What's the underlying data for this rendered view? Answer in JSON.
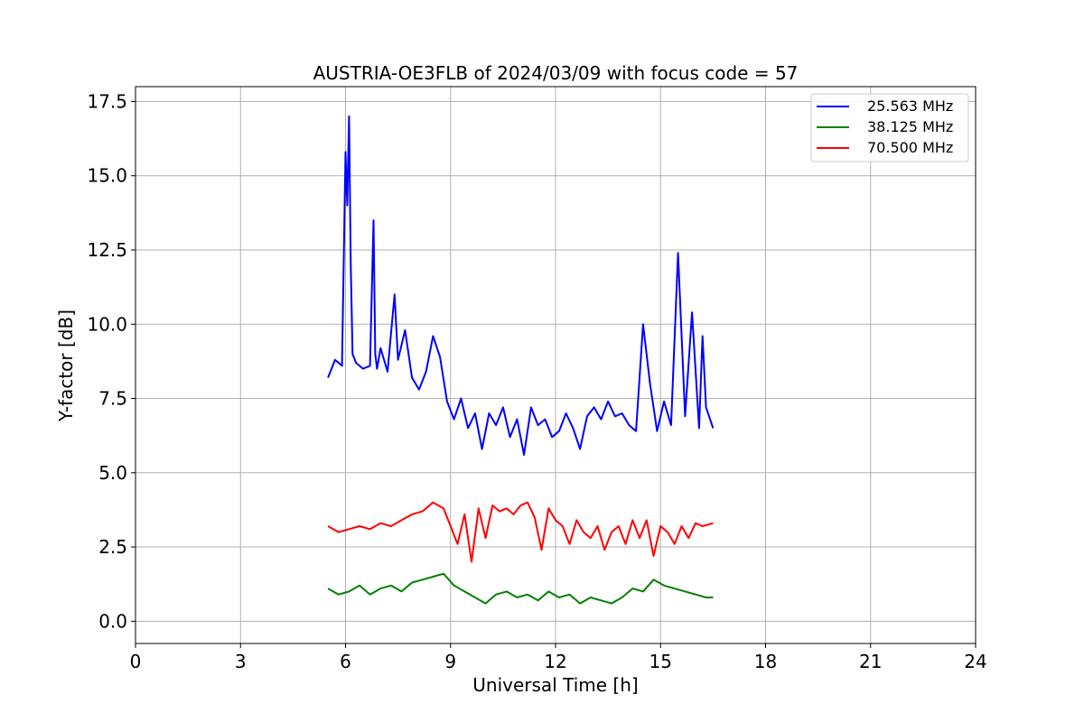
{
  "chart_data": {
    "type": "line",
    "title": "AUSTRIA-OE3FLB of 2024/03/09 with focus code = 57",
    "xlabel": "Universal Time [h]",
    "ylabel": "Y-factor [dB]",
    "xlim": [
      0,
      24
    ],
    "ylim": [
      -0.75,
      18.0
    ],
    "xticks": [
      "0",
      "3",
      "6",
      "9",
      "12",
      "15",
      "18",
      "21",
      "24"
    ],
    "yticks": [
      "0.0",
      "2.5",
      "5.0",
      "7.5",
      "10.0",
      "12.5",
      "15.0",
      "17.5"
    ],
    "grid": true,
    "legend_position": "top-right",
    "series": [
      {
        "name": "25.563 MHz",
        "color": "#0000ff",
        "x": [
          5.5,
          5.7,
          5.9,
          6.0,
          6.05,
          6.1,
          6.15,
          6.2,
          6.3,
          6.5,
          6.7,
          6.8,
          6.85,
          6.9,
          7.0,
          7.2,
          7.4,
          7.5,
          7.7,
          7.9,
          8.1,
          8.3,
          8.5,
          8.7,
          8.9,
          9.1,
          9.3,
          9.5,
          9.7,
          9.9,
          10.1,
          10.3,
          10.5,
          10.7,
          10.9,
          11.1,
          11.3,
          11.5,
          11.7,
          11.9,
          12.1,
          12.3,
          12.5,
          12.7,
          12.9,
          13.1,
          13.3,
          13.5,
          13.7,
          13.9,
          14.1,
          14.3,
          14.5,
          14.7,
          14.9,
          15.1,
          15.3,
          15.5,
          15.7,
          15.9,
          16.1,
          16.2,
          16.3,
          16.5
        ],
        "y": [
          8.2,
          8.8,
          8.6,
          15.8,
          14.0,
          17.0,
          12.0,
          9.0,
          8.7,
          8.5,
          8.6,
          13.5,
          9.0,
          8.5,
          9.2,
          8.4,
          11.0,
          8.8,
          9.8,
          8.2,
          7.8,
          8.4,
          9.6,
          8.9,
          7.4,
          6.8,
          7.5,
          6.5,
          7.0,
          5.8,
          7.0,
          6.6,
          7.2,
          6.2,
          6.8,
          5.6,
          7.2,
          6.6,
          6.8,
          6.2,
          6.4,
          7.0,
          6.5,
          5.8,
          6.9,
          7.2,
          6.8,
          7.4,
          6.9,
          7.0,
          6.6,
          6.4,
          10.0,
          8.0,
          6.4,
          7.4,
          6.6,
          12.4,
          6.9,
          10.4,
          6.5,
          9.6,
          7.2,
          6.5
        ]
      },
      {
        "name": "38.125 MHz",
        "color": "#008000",
        "x": [
          5.5,
          5.8,
          6.1,
          6.4,
          6.7,
          7.0,
          7.3,
          7.6,
          7.9,
          8.2,
          8.5,
          8.8,
          9.1,
          9.4,
          9.7,
          10.0,
          10.3,
          10.6,
          10.9,
          11.2,
          11.5,
          11.8,
          12.1,
          12.4,
          12.7,
          13.0,
          13.3,
          13.6,
          13.9,
          14.2,
          14.5,
          14.8,
          15.1,
          15.4,
          15.7,
          16.0,
          16.3,
          16.5
        ],
        "y": [
          1.1,
          0.9,
          1.0,
          1.2,
          0.9,
          1.1,
          1.2,
          1.0,
          1.3,
          1.4,
          1.5,
          1.6,
          1.2,
          1.0,
          0.8,
          0.6,
          0.9,
          1.0,
          0.8,
          0.9,
          0.7,
          1.0,
          0.8,
          0.9,
          0.6,
          0.8,
          0.7,
          0.6,
          0.8,
          1.1,
          1.0,
          1.4,
          1.2,
          1.1,
          1.0,
          0.9,
          0.8,
          0.8
        ]
      },
      {
        "name": "70.500 MHz",
        "color": "#ff0000",
        "x": [
          5.5,
          5.8,
          6.1,
          6.4,
          6.7,
          7.0,
          7.3,
          7.6,
          7.9,
          8.2,
          8.5,
          8.8,
          9.0,
          9.2,
          9.4,
          9.6,
          9.8,
          10.0,
          10.2,
          10.4,
          10.6,
          10.8,
          11.0,
          11.2,
          11.4,
          11.6,
          11.8,
          12.0,
          12.2,
          12.4,
          12.6,
          12.8,
          13.0,
          13.2,
          13.4,
          13.6,
          13.8,
          14.0,
          14.2,
          14.4,
          14.6,
          14.8,
          15.0,
          15.2,
          15.4,
          15.6,
          15.8,
          16.0,
          16.2,
          16.5
        ],
        "y": [
          3.2,
          3.0,
          3.1,
          3.2,
          3.1,
          3.3,
          3.2,
          3.4,
          3.6,
          3.7,
          4.0,
          3.8,
          3.2,
          2.6,
          3.6,
          2.0,
          3.8,
          2.8,
          3.9,
          3.7,
          3.8,
          3.6,
          3.9,
          4.0,
          3.5,
          2.4,
          3.8,
          3.4,
          3.2,
          2.6,
          3.4,
          3.0,
          2.8,
          3.2,
          2.4,
          3.0,
          3.2,
          2.6,
          3.4,
          2.8,
          3.4,
          2.2,
          3.2,
          3.0,
          2.6,
          3.2,
          2.8,
          3.3,
          3.2,
          3.3
        ]
      }
    ]
  }
}
